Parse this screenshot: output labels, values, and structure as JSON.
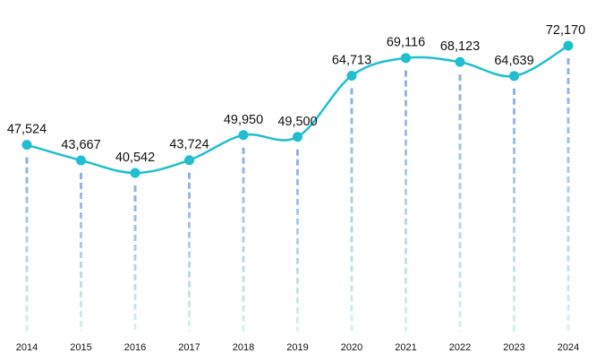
{
  "chart_data": {
    "type": "line",
    "title": "",
    "xlabel": "",
    "ylabel": "",
    "categories": [
      "2014",
      "2015",
      "2016",
      "2017",
      "2018",
      "2019",
      "2020",
      "2021",
      "2022",
      "2023",
      "2024"
    ],
    "values": [
      47524,
      43667,
      40542,
      43724,
      49950,
      49500,
      64713,
      69116,
      68123,
      64639,
      72170
    ],
    "labels": [
      "47,524",
      "43,667",
      "40,542",
      "43,724",
      "49,950",
      "49,500",
      "64,713",
      "69,116",
      "68,123",
      "64,639",
      "72,170"
    ],
    "grid": false,
    "legend": "none",
    "colors": {
      "line": "#1fbfcf",
      "drop_top": "#8fb0dc",
      "drop_bottom": "#d4f3ee"
    }
  }
}
